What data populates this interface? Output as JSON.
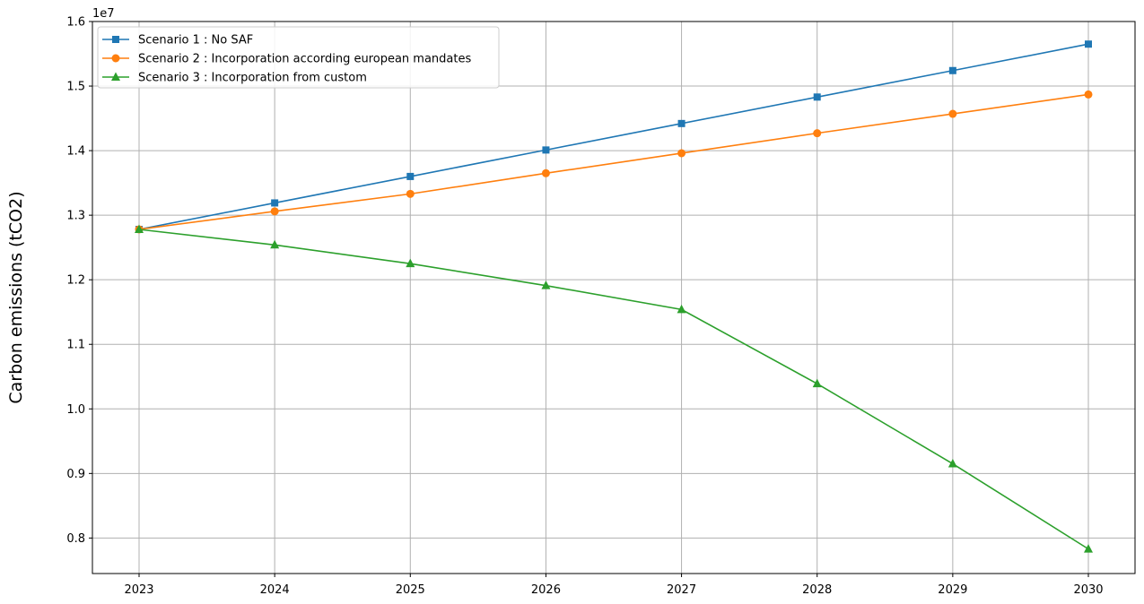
{
  "chart_data": {
    "type": "line",
    "title": "",
    "xlabel": "",
    "ylabel": "Carbon emissions (tCO2)",
    "y_offset_label": "1e7",
    "x": [
      2023,
      2024,
      2025,
      2026,
      2027,
      2028,
      2029,
      2030
    ],
    "x_tick_labels": [
      "2023",
      "2024",
      "2025",
      "2026",
      "2027",
      "2028",
      "2029",
      "2030"
    ],
    "y_ticks": [
      0.8,
      0.9,
      1.0,
      1.1,
      1.2,
      1.3,
      1.4,
      1.5,
      1.6
    ],
    "y_tick_labels": [
      "0.8",
      "0.9",
      "1.0",
      "1.1",
      "1.2",
      "1.3",
      "1.4",
      "1.5",
      "1.6"
    ],
    "ylim": [
      0.745,
      1.6
    ],
    "y_units_multiplier": 10000000,
    "grid": true,
    "legend_position": "top-left",
    "series": [
      {
        "name": "Scenario 1 : No SAF",
        "color": "#1f77b4",
        "marker": "square",
        "values": [
          1.278,
          1.319,
          1.36,
          1.401,
          1.442,
          1.483,
          1.524,
          1.565
        ]
      },
      {
        "name": "Scenario 2 : Incorporation according european mandates",
        "color": "#ff7f0e",
        "marker": "circle",
        "values": [
          1.278,
          1.306,
          1.333,
          1.365,
          1.396,
          1.427,
          1.457,
          1.487
        ]
      },
      {
        "name": "Scenario 3 : Incorporation from custom",
        "color": "#2ca02c",
        "marker": "triangle",
        "values": [
          1.278,
          1.254,
          1.225,
          1.191,
          1.154,
          1.039,
          0.915,
          0.783
        ]
      }
    ]
  }
}
